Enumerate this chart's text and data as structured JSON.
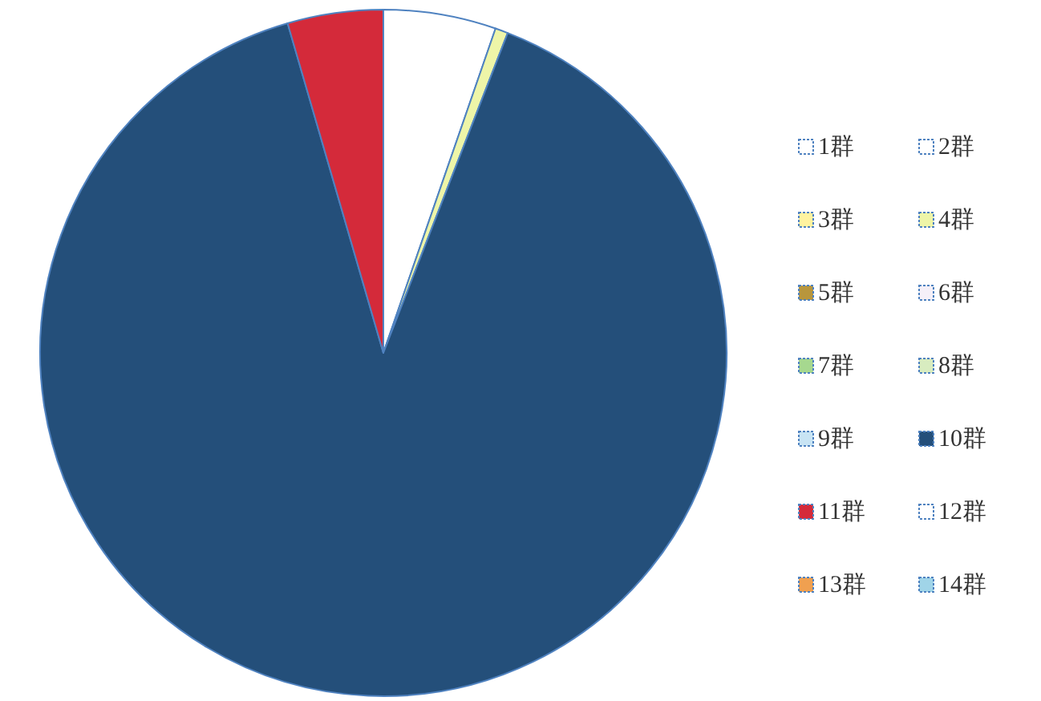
{
  "chart_data": {
    "type": "pie",
    "categories": [
      "1群",
      "2群",
      "3群",
      "4群",
      "5群",
      "6群",
      "7群",
      "8群",
      "9群",
      "10群",
      "11群",
      "12群",
      "13群",
      "14群"
    ],
    "values": [
      5.3,
      0,
      0,
      0.6,
      0,
      0,
      0,
      0,
      0,
      89.6,
      4.5,
      0,
      0,
      0
    ],
    "colors": [
      "#ffffff",
      "#ffffff",
      "#fff3a0",
      "#eef5a8",
      "#b8963c",
      "#f5f0f8",
      "#a6d88f",
      "#d8ecc0",
      "#c8e4f4",
      "#244f7a",
      "#d42a3a",
      "#ffffff",
      "#f0a050",
      "#a0d4e8"
    ],
    "legend": "right"
  }
}
